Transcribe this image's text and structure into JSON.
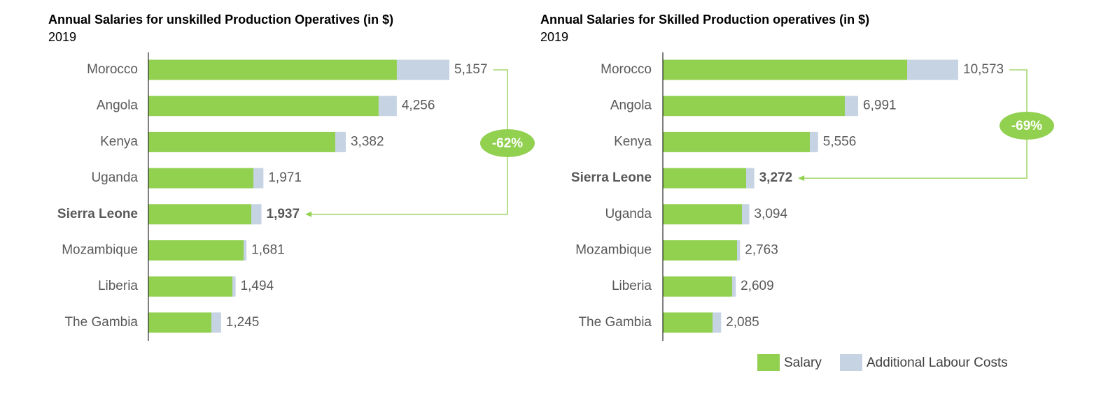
{
  "chart_data": [
    {
      "type": "stacked-bar-horizontal",
      "title": "Annual Salaries for unskilled Production Operatives (in $)",
      "subtitle": "2019",
      "categories": [
        "Morocco",
        "Angola",
        "Kenya",
        "Uganda",
        "Sierra Leone",
        "Mozambique",
        "Liberia",
        "The Gambia"
      ],
      "series": [
        {
          "name": "Salary",
          "color": "#92d050",
          "values": [
            4257,
            3945,
            3202,
            1799,
            1763,
            1631,
            1439,
            1079
          ]
        },
        {
          "name": "Additional Labour Costs",
          "color": "#c5d3e3",
          "values": [
            900,
            311,
            180,
            172,
            174,
            50,
            55,
            166
          ]
        }
      ],
      "totals": [
        5157,
        4256,
        3382,
        1971,
        1937,
        1681,
        1494,
        1245
      ],
      "total_labels": [
        "5,157",
        "4,256",
        "3,382",
        "1,971",
        "1,937",
        "1,681",
        "1,494",
        "1,245"
      ],
      "highlight": 4,
      "annotation": "-62%"
    },
    {
      "type": "stacked-bar-horizontal",
      "title": "Annual Salaries for Skilled Production operatives (in $)",
      "subtitle": "2019",
      "categories": [
        "Morocco",
        "Angola",
        "Kenya",
        "Sierra Leone",
        "Uganda",
        "Mozambique",
        "Liberia",
        "The Gambia"
      ],
      "series": [
        {
          "name": "Salary",
          "color": "#92d050",
          "values": [
            8744,
            6514,
            5262,
            2982,
            2831,
            2656,
            2480,
            1779
          ]
        },
        {
          "name": "Additional Labour Costs",
          "color": "#c5d3e3",
          "values": [
            1829,
            477,
            294,
            290,
            263,
            107,
            129,
            306
          ]
        }
      ],
      "totals": [
        10573,
        6991,
        5556,
        3272,
        3094,
        2763,
        2609,
        2085
      ],
      "total_labels": [
        "10,573",
        "6,991",
        "5,556",
        "3,272",
        "3,094",
        "2,763",
        "2,609",
        "2,085"
      ],
      "highlight": 3,
      "annotation": "-69%"
    }
  ]
}
